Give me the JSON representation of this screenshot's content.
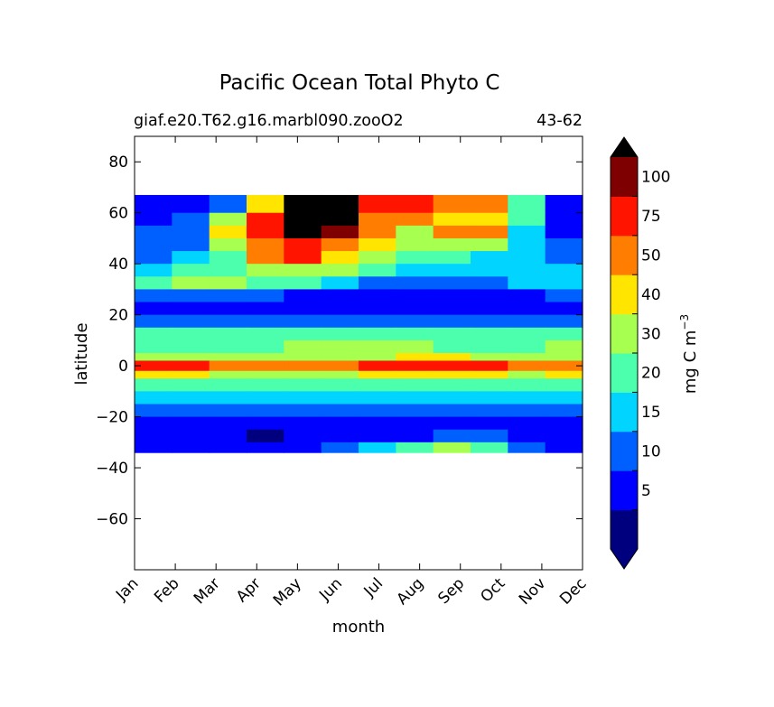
{
  "chart_data": {
    "type": "heatmap",
    "title": "Pacific Ocean Total Phyto C",
    "subtitle_left": "giaf.e20.T62.g16.marbl090.zooO2",
    "subtitle_right": "43-62",
    "xlabel": "month",
    "ylabel": "latitude",
    "x_ticks": [
      "Jan",
      "Feb",
      "Mar",
      "Apr",
      "May",
      "Jun",
      "Jul",
      "Aug",
      "Sep",
      "Oct",
      "Nov",
      "Dec"
    ],
    "xlim": [
      0,
      11
    ],
    "ylim": [
      -80,
      90
    ],
    "y_ticks": [
      80,
      60,
      40,
      20,
      0,
      -20,
      -40,
      -60
    ],
    "y_tick_labels": [
      "80",
      "60",
      "40",
      "20",
      "0",
      "−20",
      "−40",
      "−60"
    ],
    "data_extent_lat": [
      -34,
      67
    ],
    "grid": false,
    "colorbar": {
      "label": "mg C m",
      "label_superscript": "−3",
      "levels": [
        0,
        5,
        10,
        15,
        20,
        30,
        40,
        50,
        75,
        100,
        120
      ],
      "tick_labels": [
        "5",
        "10",
        "15",
        "20",
        "30",
        "40",
        "50",
        "75",
        "100"
      ],
      "tick_values": [
        5,
        10,
        15,
        20,
        30,
        40,
        50,
        75,
        100
      ],
      "colors": [
        "#00007f",
        "#0000ff",
        "#0060ff",
        "#00d4ff",
        "#4cffad",
        "#a7ff4f",
        "#ffe500",
        "#ff7d00",
        "#ff1400",
        "#7f0000"
      ],
      "extend": "both",
      "under_color": "#00007f",
      "over_color": "#000000"
    },
    "bands": [
      {
        "lat": [
          60,
          67
        ],
        "values": [
          8,
          8,
          12,
          45,
          130,
          130,
          90,
          80,
          70,
          60,
          25,
          8
        ]
      },
      {
        "lat": [
          55,
          60
        ],
        "values": [
          8,
          10,
          30,
          80,
          130,
          130,
          60,
          50,
          45,
          45,
          20,
          8
        ]
      },
      {
        "lat": [
          50,
          55
        ],
        "values": [
          10,
          12,
          40,
          80,
          130,
          100,
          50,
          35,
          60,
          50,
          15,
          8
        ]
      },
      {
        "lat": [
          45,
          50
        ],
        "values": [
          10,
          12,
          30,
          70,
          90,
          60,
          45,
          30,
          35,
          30,
          15,
          10
        ]
      },
      {
        "lat": [
          40,
          45
        ],
        "values": [
          12,
          15,
          25,
          55,
          75,
          45,
          30,
          20,
          20,
          18,
          15,
          12
        ]
      },
      {
        "lat": [
          35,
          40
        ],
        "values": [
          15,
          20,
          25,
          35,
          35,
          30,
          20,
          15,
          15,
          15,
          15,
          15
        ]
      },
      {
        "lat": [
          30,
          35
        ],
        "values": [
          20,
          30,
          30,
          25,
          20,
          15,
          12,
          12,
          12,
          12,
          15,
          18
        ]
      },
      {
        "lat": [
          25,
          30
        ],
        "values": [
          10,
          12,
          12,
          10,
          8,
          8,
          7,
          6,
          6,
          6,
          8,
          10
        ]
      },
      {
        "lat": [
          20,
          25
        ],
        "values": [
          7,
          7,
          7,
          6,
          6,
          5,
          5,
          5,
          5,
          5,
          6,
          7
        ]
      },
      {
        "lat": [
          15,
          20
        ],
        "values": [
          12,
          12,
          12,
          12,
          12,
          12,
          12,
          12,
          12,
          12,
          12,
          12
        ]
      },
      {
        "lat": [
          10,
          15
        ],
        "values": [
          25,
          28,
          25,
          22,
          22,
          22,
          22,
          22,
          22,
          22,
          22,
          25
        ]
      },
      {
        "lat": [
          5,
          10
        ],
        "values": [
          25,
          25,
          22,
          22,
          32,
          32,
          32,
          30,
          28,
          25,
          25,
          30
        ]
      },
      {
        "lat": [
          2,
          5
        ],
        "values": [
          30,
          30,
          30,
          30,
          30,
          30,
          35,
          40,
          40,
          38,
          35,
          30
        ]
      },
      {
        "lat": [
          -2,
          2
        ],
        "values": [
          80,
          75,
          60,
          55,
          55,
          60,
          75,
          80,
          80,
          75,
          60,
          70
        ]
      },
      {
        "lat": [
          -5,
          -2
        ],
        "values": [
          45,
          40,
          35,
          30,
          30,
          35,
          40,
          45,
          45,
          40,
          35,
          40
        ]
      },
      {
        "lat": [
          -10,
          -5
        ],
        "values": [
          22,
          22,
          22,
          22,
          22,
          22,
          22,
          22,
          22,
          22,
          22,
          22
        ]
      },
      {
        "lat": [
          -15,
          -10
        ],
        "values": [
          17,
          17,
          17,
          17,
          17,
          17,
          17,
          18,
          18,
          17,
          17,
          17
        ]
      },
      {
        "lat": [
          -20,
          -15
        ],
        "values": [
          12,
          12,
          12,
          12,
          12,
          12,
          12,
          12,
          12,
          12,
          12,
          12
        ]
      },
      {
        "lat": [
          -25,
          -20
        ],
        "values": [
          8,
          8,
          8,
          8,
          8,
          8,
          8,
          8,
          8,
          8,
          8,
          8
        ]
      },
      {
        "lat": [
          -30,
          -25
        ],
        "values": [
          6,
          6,
          6,
          4,
          5,
          6,
          6,
          8,
          12,
          10,
          7,
          6
        ]
      },
      {
        "lat": [
          -34,
          -30
        ],
        "values": [
          8,
          8,
          8,
          8,
          8,
          10,
          15,
          22,
          35,
          25,
          12,
          8
        ]
      }
    ]
  }
}
